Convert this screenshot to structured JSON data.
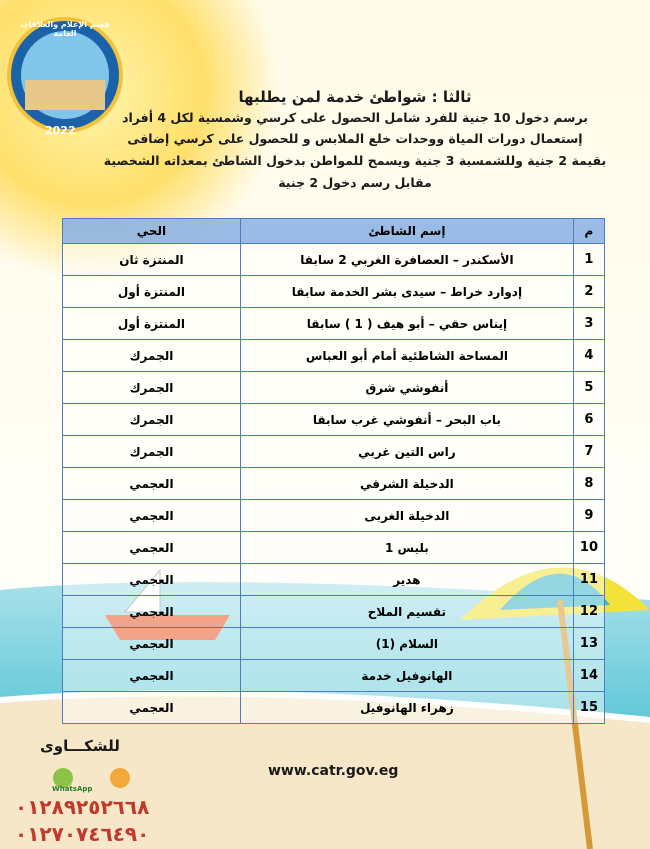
{
  "logo": {
    "title": "قسم الإعلام والعلاقات العامة",
    "year": "2022"
  },
  "header": {
    "title": "ثالثا : شواطئ خدمة لمن يطلبها",
    "lines": [
      "برسم دخول 10 جنية للفرد شامل الحصول على كرسي وشمسية لكل 4 أفراد",
      "إستعمال دورات المياة ووحدات خلع الملابس و للحصول على كرسي إضافى",
      "بقيمة 2 جنية وللشمسية 3 جنية ويسمح للمواطن بدخول الشاطئ بمعداته الشخصية",
      "مقابل رسم دخول 2 جنية"
    ]
  },
  "table": {
    "columns": [
      "م",
      "إسم الشاطئ",
      "الحي"
    ],
    "rows": [
      [
        1,
        "الأسكندر – العصافرة الغربي 2 سابقا",
        "المنتزة ثان"
      ],
      [
        2,
        "إدوارد خراط – سيدى بشر الخدمة سابقا",
        "المنتزة أول"
      ],
      [
        3,
        "إيناس حقي – أبو هيف ( 1 ) سابقا",
        "المنتزة أول"
      ],
      [
        4,
        "المساحة الشاطئية أمام أبو العباس",
        "الجمرك"
      ],
      [
        5,
        "أنفوشي شرق",
        "الجمرك"
      ],
      [
        6,
        "باب البحر – أنفوشي غرب سابقا",
        "الجمرك"
      ],
      [
        7,
        "راس التين غربي",
        "الجمرك"
      ],
      [
        8,
        "الدخيلة الشرقي",
        "العجمي"
      ],
      [
        9,
        "الدخيلة الغربى",
        "العجمي"
      ],
      [
        10,
        "بليس 1",
        "العجمي"
      ],
      [
        11,
        "هدير",
        "العجمي"
      ],
      [
        12,
        "تقسيم الملاح",
        "العجمي"
      ],
      [
        13,
        "السلام (1)",
        "العجمي"
      ],
      [
        14,
        "الهانوفيل خدمة",
        "العجمي"
      ],
      [
        15,
        "زهراء الهانوفيل",
        "العجمي"
      ]
    ]
  },
  "footer": {
    "complaints": "للشكـــاوى",
    "whatsapp": "WhatsApp",
    "website": "www.catr.gov.eg",
    "phones": [
      "٠١٢٨٩٢٥٢٦٦٨",
      "٠١٢٧٠٧٤٦٤٩٠"
    ]
  }
}
